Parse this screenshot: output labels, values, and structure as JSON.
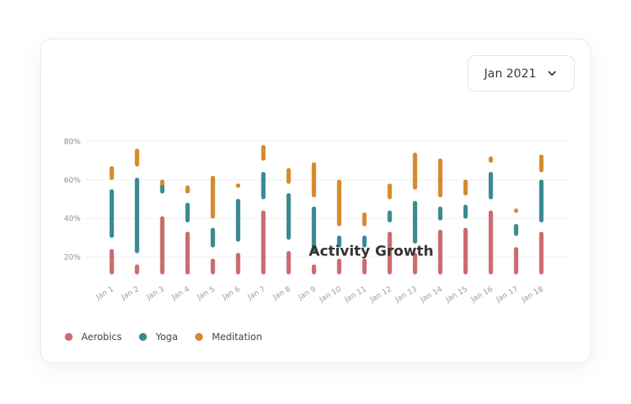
{
  "date_select": {
    "value": "Jan 2021",
    "icon": "chevron-down-icon"
  },
  "chart_data": {
    "type": "bar",
    "title": "Activity Growth",
    "xlabel": "",
    "ylabel": "",
    "ylim": [
      10,
      80
    ],
    "yticks": [
      "20%",
      "40%",
      "60%",
      "80%"
    ],
    "y_tick_values": [
      20,
      40,
      60,
      80
    ],
    "grid": true,
    "legend_position": "bottom-left",
    "categories": [
      "Jan 1",
      "Jan 2",
      "Jan 3",
      "Jan 4",
      "Jan 5",
      "Jan 6",
      "Jan 7",
      "Jan 8",
      "Jan 9",
      "Jan 10",
      "Jan 11",
      "Jan 12",
      "Jan 13",
      "Jan 14",
      "Jan 15",
      "Jan 16",
      "Jan 17",
      "Jan 18"
    ],
    "series": [
      {
        "name": "Aerobics",
        "color": "#cc6b6f",
        "ranges": [
          [
            11,
            24
          ],
          [
            11,
            16
          ],
          [
            11,
            41
          ],
          [
            11,
            33
          ],
          [
            11,
            19
          ],
          [
            11,
            22
          ],
          [
            11,
            44
          ],
          [
            11,
            23
          ],
          [
            11,
            16
          ],
          [
            11,
            19
          ],
          [
            11,
            19
          ],
          [
            11,
            33
          ],
          [
            11,
            22
          ],
          [
            11,
            34
          ],
          [
            11,
            35
          ],
          [
            11,
            44
          ],
          [
            11,
            25
          ],
          [
            11,
            33
          ]
        ]
      },
      {
        "name": "Yoga",
        "color": "#3a8a91",
        "ranges": [
          [
            30,
            55
          ],
          [
            22,
            61
          ],
          [
            53,
            58
          ],
          [
            38,
            48
          ],
          [
            25,
            35
          ],
          [
            28,
            50
          ],
          [
            50,
            64
          ],
          [
            29,
            53
          ],
          [
            22,
            46
          ],
          [
            25,
            31
          ],
          [
            25,
            31
          ],
          [
            38,
            44
          ],
          [
            27,
            49
          ],
          [
            39,
            46
          ],
          [
            40,
            47
          ],
          [
            50,
            64
          ],
          [
            31,
            37
          ],
          [
            38,
            60
          ]
        ]
      },
      {
        "name": "Meditation",
        "color": "#d48b2b",
        "ranges": [
          [
            60,
            67
          ],
          [
            67,
            76
          ],
          [
            57,
            60
          ],
          [
            53,
            57
          ],
          [
            40,
            62
          ],
          [
            56,
            58
          ],
          [
            70,
            78
          ],
          [
            58,
            66
          ],
          [
            51,
            69
          ],
          [
            36,
            60
          ],
          [
            36,
            43
          ],
          [
            50,
            58
          ],
          [
            55,
            74
          ],
          [
            51,
            71
          ],
          [
            52,
            60
          ],
          [
            69,
            72
          ],
          [
            43,
            45
          ],
          [
            64,
            73
          ]
        ]
      }
    ]
  }
}
